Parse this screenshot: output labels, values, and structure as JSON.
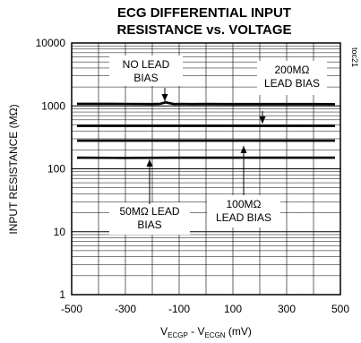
{
  "chart_data": {
    "type": "line",
    "title_lines": [
      "ECG DIFFERENTIAL INPUT",
      "RESISTANCE vs. VOLTAGE"
    ],
    "figure_code": "toc21",
    "xlabel_parts": [
      "V",
      "ECGP",
      " - V",
      "ECGN",
      " (mV)"
    ],
    "ylabel": "INPUT RESISTANCE (MΩ)",
    "xlim": [
      -500,
      500
    ],
    "ylim": [
      1,
      10000
    ],
    "yscale": "log",
    "grid": true,
    "x_ticks": [
      -500,
      -300,
      -100,
      100,
      300,
      500
    ],
    "x_tick_labels": [
      "-500",
      "-300",
      "-100",
      "100",
      "300",
      "500"
    ],
    "y_ticks": [
      1,
      10,
      100,
      1000,
      10000
    ],
    "y_tick_labels": [
      "1",
      "10",
      "100",
      "1000",
      "10000"
    ],
    "series": [
      {
        "x": [
          -480,
          -300,
          -200,
          -170,
          -150,
          -120,
          -100,
          -50,
          0,
          100,
          200,
          300,
          400,
          480
        ],
        "y": [
          1080,
          1075,
          1070,
          1080,
          1140,
          1070,
          1075,
          1070,
          1072,
          1070,
          1068,
          1070,
          1068,
          1065
        ]
      },
      {
        "x": [
          -480,
          -300,
          -100,
          100,
          300,
          480
        ],
        "y": [
          480,
          480,
          480,
          480,
          480,
          480
        ]
      },
      {
        "x": [
          -480,
          -300,
          -100,
          100,
          300,
          480
        ],
        "y": [
          280,
          280,
          280,
          280,
          280,
          280
        ]
      },
      {
        "x": [
          -480,
          -300,
          -100,
          100,
          300,
          480
        ],
        "y": [
          150,
          149,
          150,
          150,
          150,
          150
        ]
      }
    ],
    "annotations": [
      {
        "lines": [
          "NO LEAD",
          "BIAS"
        ]
      },
      {
        "lines": [
          "200MΩ",
          "LEAD BIAS"
        ]
      },
      {
        "lines": [
          "50MΩ LEAD",
          "BIAS"
        ]
      },
      {
        "lines": [
          "100MΩ",
          "LEAD BIAS"
        ]
      }
    ]
  }
}
